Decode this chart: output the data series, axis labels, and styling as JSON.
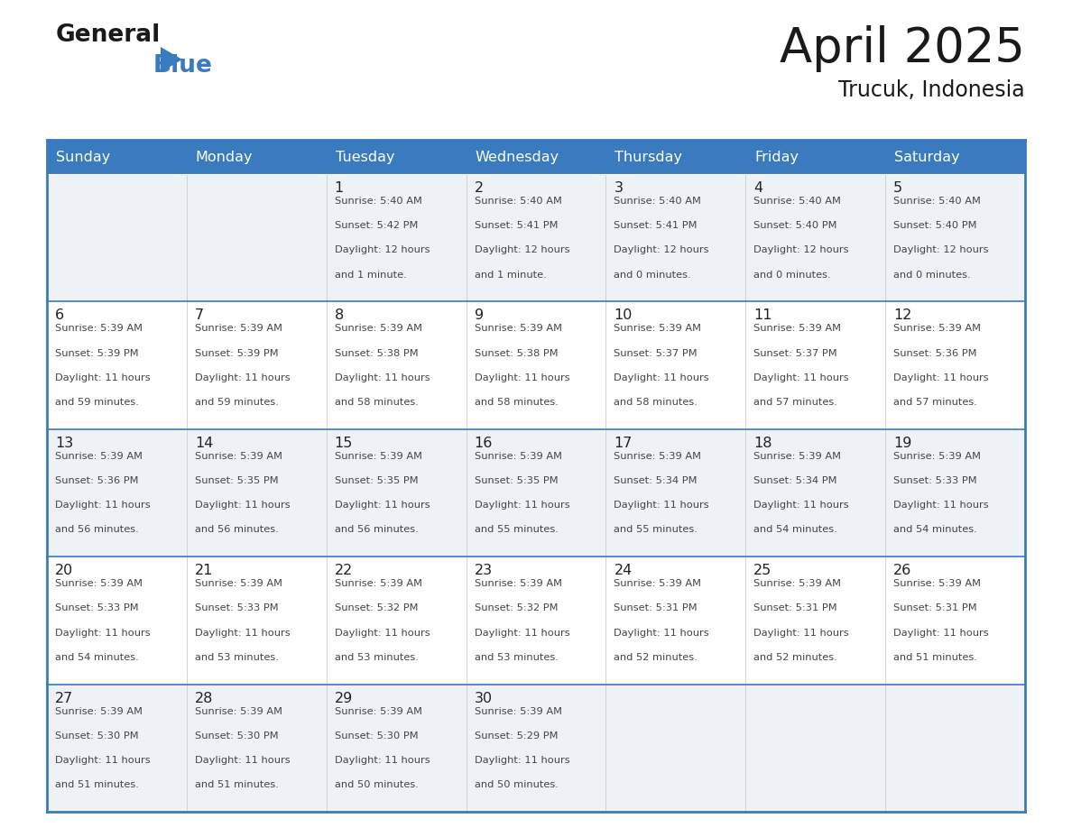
{
  "title": "April 2025",
  "subtitle": "Trucuk, Indonesia",
  "header_bg_color": "#3a7bbf",
  "header_text_color": "#ffffff",
  "cell_bg_color_light": "#eef2f7",
  "cell_bg_color_white": "#ffffff",
  "border_color": "#3a7bbf",
  "row_line_color": "#3a7bbf",
  "text_color": "#333333",
  "days_of_week": [
    "Sunday",
    "Monday",
    "Tuesday",
    "Wednesday",
    "Thursday",
    "Friday",
    "Saturday"
  ],
  "calendar_data": [
    [
      {
        "day": null,
        "sunrise": null,
        "sunset": null,
        "daylight": null
      },
      {
        "day": null,
        "sunrise": null,
        "sunset": null,
        "daylight": null
      },
      {
        "day": 1,
        "sunrise": "5:40 AM",
        "sunset": "5:42 PM",
        "daylight": "12 hours\nand 1 minute."
      },
      {
        "day": 2,
        "sunrise": "5:40 AM",
        "sunset": "5:41 PM",
        "daylight": "12 hours\nand 1 minute."
      },
      {
        "day": 3,
        "sunrise": "5:40 AM",
        "sunset": "5:41 PM",
        "daylight": "12 hours\nand 0 minutes."
      },
      {
        "day": 4,
        "sunrise": "5:40 AM",
        "sunset": "5:40 PM",
        "daylight": "12 hours\nand 0 minutes."
      },
      {
        "day": 5,
        "sunrise": "5:40 AM",
        "sunset": "5:40 PM",
        "daylight": "12 hours\nand 0 minutes."
      }
    ],
    [
      {
        "day": 6,
        "sunrise": "5:39 AM",
        "sunset": "5:39 PM",
        "daylight": "11 hours\nand 59 minutes."
      },
      {
        "day": 7,
        "sunrise": "5:39 AM",
        "sunset": "5:39 PM",
        "daylight": "11 hours\nand 59 minutes."
      },
      {
        "day": 8,
        "sunrise": "5:39 AM",
        "sunset": "5:38 PM",
        "daylight": "11 hours\nand 58 minutes."
      },
      {
        "day": 9,
        "sunrise": "5:39 AM",
        "sunset": "5:38 PM",
        "daylight": "11 hours\nand 58 minutes."
      },
      {
        "day": 10,
        "sunrise": "5:39 AM",
        "sunset": "5:37 PM",
        "daylight": "11 hours\nand 58 minutes."
      },
      {
        "day": 11,
        "sunrise": "5:39 AM",
        "sunset": "5:37 PM",
        "daylight": "11 hours\nand 57 minutes."
      },
      {
        "day": 12,
        "sunrise": "5:39 AM",
        "sunset": "5:36 PM",
        "daylight": "11 hours\nand 57 minutes."
      }
    ],
    [
      {
        "day": 13,
        "sunrise": "5:39 AM",
        "sunset": "5:36 PM",
        "daylight": "11 hours\nand 56 minutes."
      },
      {
        "day": 14,
        "sunrise": "5:39 AM",
        "sunset": "5:35 PM",
        "daylight": "11 hours\nand 56 minutes."
      },
      {
        "day": 15,
        "sunrise": "5:39 AM",
        "sunset": "5:35 PM",
        "daylight": "11 hours\nand 56 minutes."
      },
      {
        "day": 16,
        "sunrise": "5:39 AM",
        "sunset": "5:35 PM",
        "daylight": "11 hours\nand 55 minutes."
      },
      {
        "day": 17,
        "sunrise": "5:39 AM",
        "sunset": "5:34 PM",
        "daylight": "11 hours\nand 55 minutes."
      },
      {
        "day": 18,
        "sunrise": "5:39 AM",
        "sunset": "5:34 PM",
        "daylight": "11 hours\nand 54 minutes."
      },
      {
        "day": 19,
        "sunrise": "5:39 AM",
        "sunset": "5:33 PM",
        "daylight": "11 hours\nand 54 minutes."
      }
    ],
    [
      {
        "day": 20,
        "sunrise": "5:39 AM",
        "sunset": "5:33 PM",
        "daylight": "11 hours\nand 54 minutes."
      },
      {
        "day": 21,
        "sunrise": "5:39 AM",
        "sunset": "5:33 PM",
        "daylight": "11 hours\nand 53 minutes."
      },
      {
        "day": 22,
        "sunrise": "5:39 AM",
        "sunset": "5:32 PM",
        "daylight": "11 hours\nand 53 minutes."
      },
      {
        "day": 23,
        "sunrise": "5:39 AM",
        "sunset": "5:32 PM",
        "daylight": "11 hours\nand 53 minutes."
      },
      {
        "day": 24,
        "sunrise": "5:39 AM",
        "sunset": "5:31 PM",
        "daylight": "11 hours\nand 52 minutes."
      },
      {
        "day": 25,
        "sunrise": "5:39 AM",
        "sunset": "5:31 PM",
        "daylight": "11 hours\nand 52 minutes."
      },
      {
        "day": 26,
        "sunrise": "5:39 AM",
        "sunset": "5:31 PM",
        "daylight": "11 hours\nand 51 minutes."
      }
    ],
    [
      {
        "day": 27,
        "sunrise": "5:39 AM",
        "sunset": "5:30 PM",
        "daylight": "11 hours\nand 51 minutes."
      },
      {
        "day": 28,
        "sunrise": "5:39 AM",
        "sunset": "5:30 PM",
        "daylight": "11 hours\nand 51 minutes."
      },
      {
        "day": 29,
        "sunrise": "5:39 AM",
        "sunset": "5:30 PM",
        "daylight": "11 hours\nand 50 minutes."
      },
      {
        "day": 30,
        "sunrise": "5:39 AM",
        "sunset": "5:29 PM",
        "daylight": "11 hours\nand 50 minutes."
      },
      {
        "day": null,
        "sunrise": null,
        "sunset": null,
        "daylight": null
      },
      {
        "day": null,
        "sunrise": null,
        "sunset": null,
        "daylight": null
      },
      {
        "day": null,
        "sunrise": null,
        "sunset": null,
        "daylight": null
      }
    ]
  ]
}
